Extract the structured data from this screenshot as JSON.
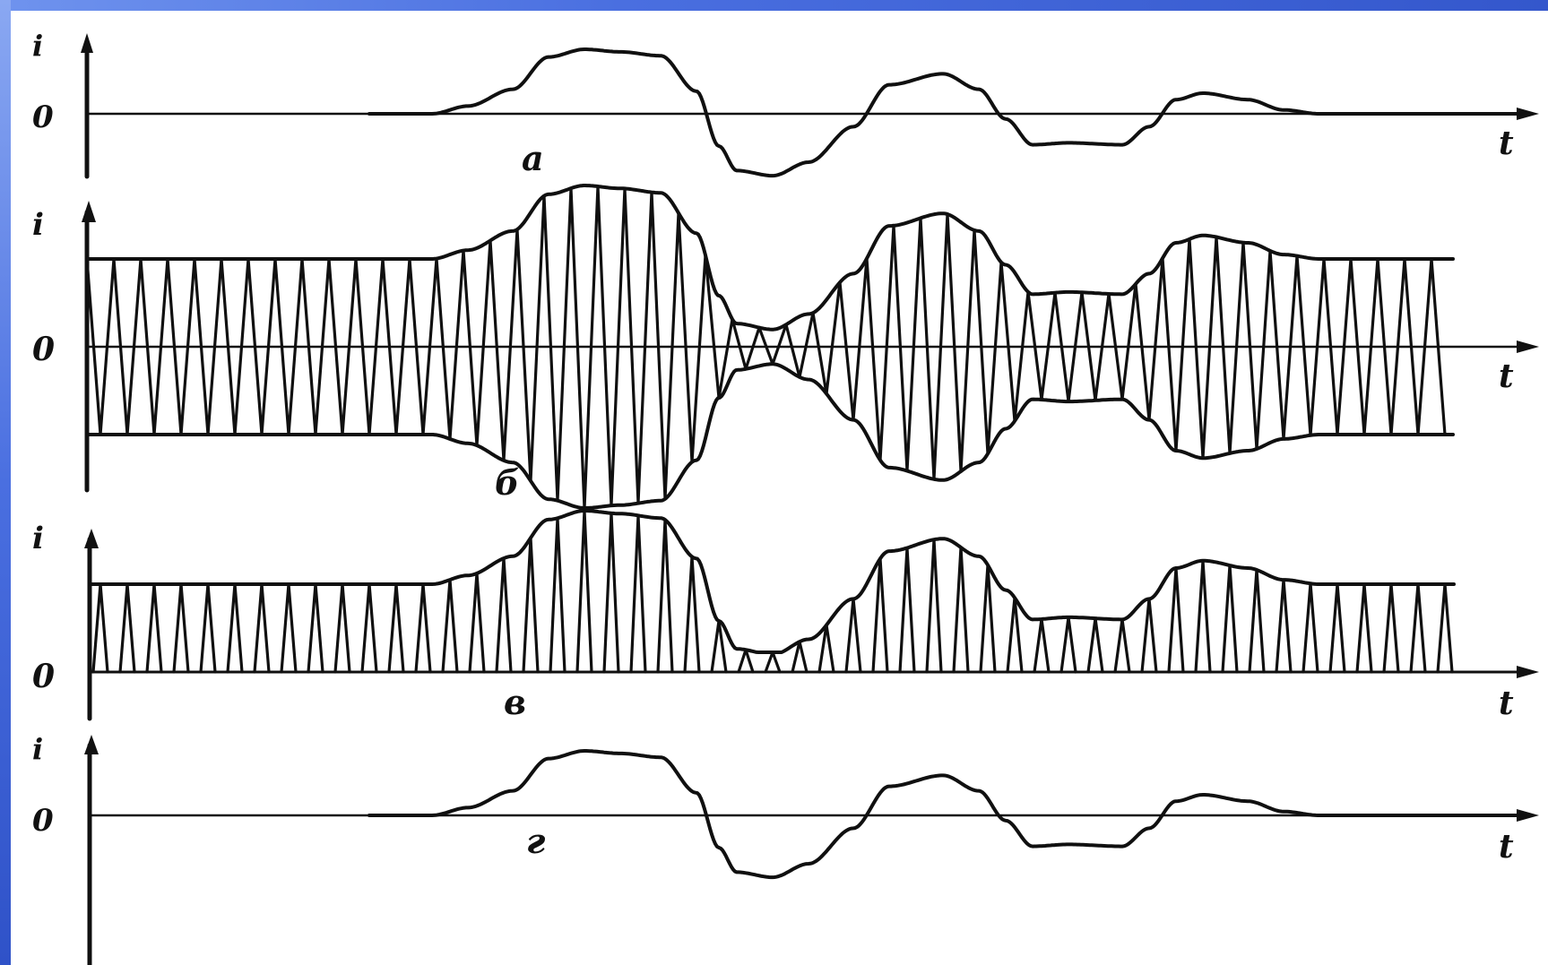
{
  "figure": {
    "axis_labels": {
      "y": "i",
      "x": "t",
      "origin": "0"
    },
    "panels": [
      {
        "id": "a",
        "caption": "а",
        "kind": "signal"
      },
      {
        "id": "b",
        "caption": "б",
        "kind": "am_carrier"
      },
      {
        "id": "v",
        "caption": "в",
        "kind": "rectified"
      },
      {
        "id": "g",
        "caption": "г",
        "kind": "demodulated"
      }
    ]
  },
  "colors": {
    "slide_background": "#1a3aa8",
    "figure_background": "#ffffff",
    "ink": "#101010"
  }
}
